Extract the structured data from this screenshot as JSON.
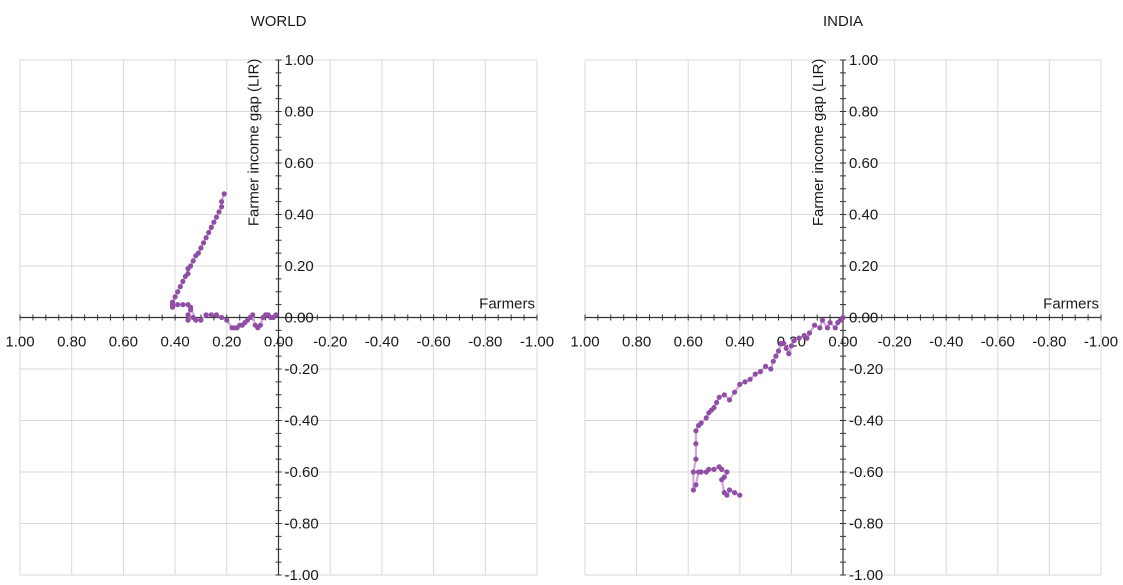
{
  "chart_data": [
    {
      "type": "line",
      "title": "WORLD",
      "xlabel": "Farmers",
      "ylabel": "Farmer income gap (LIR)",
      "xlim": [
        1.0,
        -1.0
      ],
      "ylim": [
        -1.0,
        1.0
      ],
      "x_ticks": [
        "1.00",
        "0.80",
        "0.60",
        "0.40",
        "0.20",
        "0.00",
        "-0.20",
        "-0.40",
        "-0.60",
        "-0.80",
        "-1.00"
      ],
      "y_ticks": [
        "1.00",
        "0.80",
        "0.60",
        "0.40",
        "0.20",
        "0.00",
        "-0.20",
        "-0.40",
        "-0.60",
        "-0.80",
        "-1.00"
      ],
      "grid": true,
      "marker_color": "#8e4fa5",
      "line_color": "#d3a6dc",
      "series": [
        {
          "x": [
            0.21,
            0.22,
            0.22,
            0.23,
            0.24,
            0.25,
            0.26,
            0.27,
            0.28,
            0.29,
            0.3,
            0.31,
            0.32,
            0.33,
            0.34,
            0.35,
            0.35,
            0.36,
            0.37,
            0.38,
            0.39,
            0.4,
            0.41,
            0.41,
            0.41,
            0.39,
            0.37,
            0.35,
            0.34,
            0.35,
            0.33,
            0.35,
            0.34,
            0.32,
            0.3,
            0.28,
            0.26,
            0.24,
            0.22,
            0.2,
            0.18,
            0.17,
            0.16,
            0.15,
            0.14,
            0.13,
            0.12,
            0.11,
            0.1,
            0.09,
            0.08,
            0.07,
            0.06,
            0.05,
            0.04,
            0.03,
            0.02,
            0.01
          ],
          "y": [
            0.48,
            0.45,
            0.43,
            0.41,
            0.39,
            0.37,
            0.35,
            0.33,
            0.31,
            0.29,
            0.27,
            0.25,
            0.24,
            0.22,
            0.2,
            0.19,
            0.17,
            0.16,
            0.14,
            0.12,
            0.1,
            0.08,
            0.06,
            0.05,
            0.04,
            0.05,
            0.05,
            0.05,
            0.03,
            0.01,
            0.0,
            -0.01,
            0.04,
            -0.01,
            -0.01,
            0.01,
            0.01,
            0.01,
            0.0,
            -0.01,
            -0.04,
            -0.04,
            -0.04,
            -0.03,
            -0.03,
            -0.02,
            -0.01,
            0.0,
            0.01,
            -0.03,
            -0.04,
            -0.03,
            0.0,
            0.01,
            0.01,
            0.0,
            0.0,
            0.01
          ]
        }
      ]
    },
    {
      "type": "line",
      "title": "INDIA",
      "xlabel": "Farmers",
      "ylabel": "Farmer income gap (LIR)",
      "xlim": [
        1.0,
        -1.0
      ],
      "ylim": [
        -1.0,
        1.0
      ],
      "x_ticks": [
        "1.00",
        "0.80",
        "0.60",
        "0.40",
        "0.20",
        "0.00",
        "-0.20",
        "-0.40",
        "-0.60",
        "-0.80",
        "-1.00"
      ],
      "y_ticks": [
        "1.00",
        "0.80",
        "0.60",
        "0.40",
        "0.20",
        "0.00",
        "-0.20",
        "-0.40",
        "-0.60",
        "-0.80",
        "-1.00"
      ],
      "grid": true,
      "marker_color": "#8e4fa5",
      "line_color": "#d3a6dc",
      "series": [
        {
          "x": [
            0.4,
            0.42,
            0.44,
            0.45,
            0.46,
            0.47,
            0.46,
            0.45,
            0.47,
            0.48,
            0.5,
            0.52,
            0.53,
            0.55,
            0.56,
            0.57,
            0.58,
            0.58,
            0.57,
            0.57,
            0.57,
            0.56,
            0.55,
            0.53,
            0.52,
            0.51,
            0.5,
            0.49,
            0.48,
            0.46,
            0.44,
            0.42,
            0.4,
            0.38,
            0.36,
            0.34,
            0.32,
            0.3,
            0.28,
            0.27,
            0.26,
            0.25,
            0.24,
            0.23,
            0.22,
            0.21,
            0.2,
            0.19,
            0.17,
            0.15,
            0.14,
            0.13,
            0.11,
            0.09,
            0.08,
            0.06,
            0.05,
            0.03,
            0.02,
            0.01,
            0.0
          ],
          "y": [
            -0.69,
            -0.68,
            -0.67,
            -0.69,
            -0.68,
            -0.63,
            -0.62,
            -0.6,
            -0.59,
            -0.58,
            -0.59,
            -0.59,
            -0.6,
            -0.6,
            -0.6,
            -0.65,
            -0.67,
            -0.6,
            -0.55,
            -0.49,
            -0.44,
            -0.42,
            -0.41,
            -0.39,
            -0.37,
            -0.36,
            -0.35,
            -0.33,
            -0.31,
            -0.3,
            -0.32,
            -0.29,
            -0.26,
            -0.25,
            -0.24,
            -0.22,
            -0.21,
            -0.19,
            -0.2,
            -0.17,
            -0.15,
            -0.13,
            -0.1,
            -0.1,
            -0.12,
            -0.14,
            -0.11,
            -0.09,
            -0.08,
            -0.07,
            -0.08,
            -0.06,
            -0.03,
            -0.04,
            -0.01,
            -0.04,
            -0.02,
            -0.04,
            -0.02,
            -0.01,
            0.0
          ]
        }
      ]
    }
  ]
}
